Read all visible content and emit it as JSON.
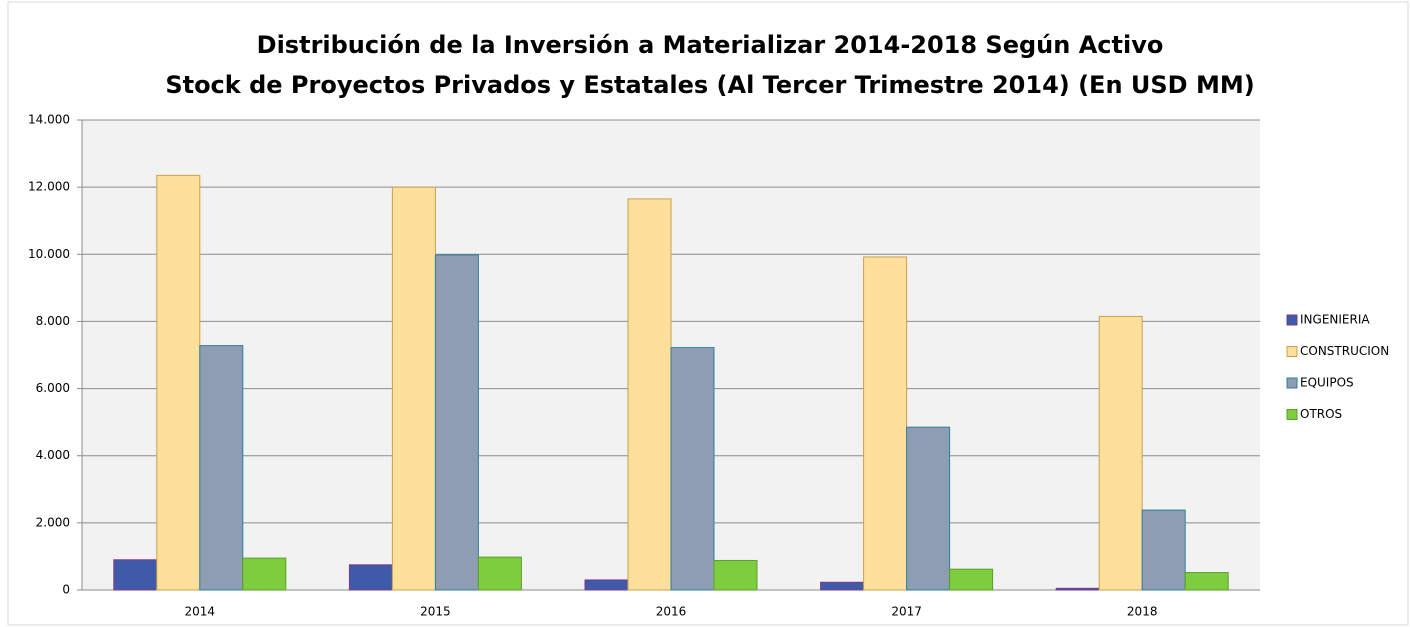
{
  "chart_data": {
    "type": "bar",
    "title": "Distribución de la Inversión a Materializar 2014-2018 Según Activo",
    "subtitle": "Stock de Proyectos Privados  y Estatales (Al Tercer Trimestre 2014) (En USD MM)",
    "categories": [
      "2014",
      "2015",
      "2016",
      "2017",
      "2018"
    ],
    "series": [
      {
        "name": "INGENIERIA",
        "color": "#3f5aa8",
        "values": [
          900,
          750,
          300,
          230,
          50
        ]
      },
      {
        "name": "CONSTRUCION",
        "color": "#fedf9b",
        "values": [
          12350,
          12000,
          11650,
          9920,
          8150
        ]
      },
      {
        "name": "EQUIPOS",
        "color": "#8f9db3",
        "values": [
          7280,
          9980,
          7220,
          4850,
          2380
        ]
      },
      {
        "name": "OTROS",
        "color": "#7dcd3f",
        "values": [
          950,
          980,
          880,
          620,
          520
        ]
      }
    ],
    "ylim": [
      0,
      14000
    ],
    "yticks": [
      0,
      {
        "value": 2000,
        "label": "2.000"
      },
      {
        "value": 4000,
        "label": "4.000"
      },
      {
        "value": 6000,
        "label": "6.000"
      },
      {
        "value": 8000,
        "label": "8.000"
      },
      {
        "value": 10000,
        "label": "10.000"
      },
      {
        "value": 12000,
        "label": "12.000"
      },
      {
        "value": 14000,
        "label": "14.000"
      }
    ],
    "grid": true,
    "legend": "right"
  }
}
